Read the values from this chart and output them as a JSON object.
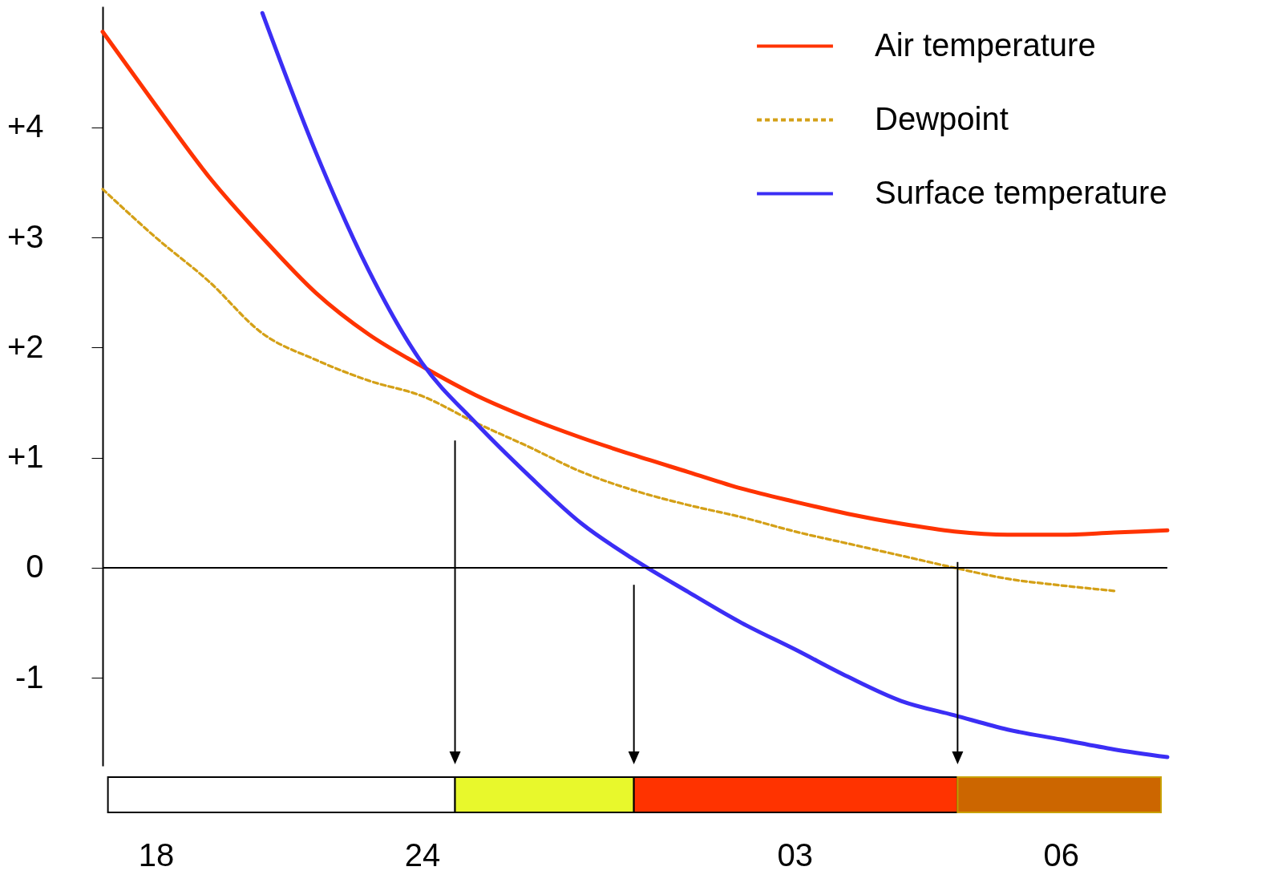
{
  "chart_data": {
    "type": "line",
    "categories": [
      null,
      "18",
      null,
      null,
      null,
      null,
      "24",
      null,
      null,
      null,
      null,
      null,
      null,
      "03",
      null,
      null,
      null,
      null,
      "06",
      null,
      null
    ],
    "ylim": [
      -1.8,
      5.1
    ],
    "yticks": [
      {
        "value": 4,
        "label": "+4"
      },
      {
        "value": 3,
        "label": "+3"
      },
      {
        "value": 2,
        "label": "+2"
      },
      {
        "value": 1,
        "label": "+1"
      },
      0,
      -1
    ],
    "grid": false,
    "legend": "top right",
    "series": [
      {
        "name": "Air temperature",
        "color": "#ff3300",
        "line_style": "solid",
        "values": [
          4.87,
          4.2,
          3.55,
          3.0,
          2.5,
          2.12,
          1.83,
          1.57,
          1.36,
          1.18,
          1.02,
          0.87,
          0.72,
          0.6,
          0.49,
          0.4,
          0.33,
          0.3,
          0.3,
          0.32,
          0.34
        ]
      },
      {
        "name": "Dewpoint",
        "color": "#d4a017",
        "line_style": "dashed",
        "values": [
          3.44,
          3.0,
          2.6,
          2.13,
          1.89,
          1.7,
          1.56,
          1.32,
          1.1,
          0.87,
          0.7,
          0.57,
          0.46,
          0.33,
          0.22,
          0.11,
          0,
          -0.1,
          -0.16,
          -0.21,
          null
        ]
      },
      {
        "name": "Surface temperature",
        "color": "#3b2ef5",
        "line_style": "solid",
        "values": [
          null,
          null,
          null,
          5.04,
          3.78,
          2.7,
          1.86,
          1.32,
          0.84,
          0.4,
          0.07,
          -0.22,
          -0.5,
          -0.74,
          -0.99,
          -1.21,
          -1.34,
          -1.47,
          -1.56,
          -1.65,
          -1.72
        ]
      }
    ],
    "ref_lines": [
      {
        "axis": "y",
        "value": 0,
        "color": "#000000"
      }
    ]
  }
}
